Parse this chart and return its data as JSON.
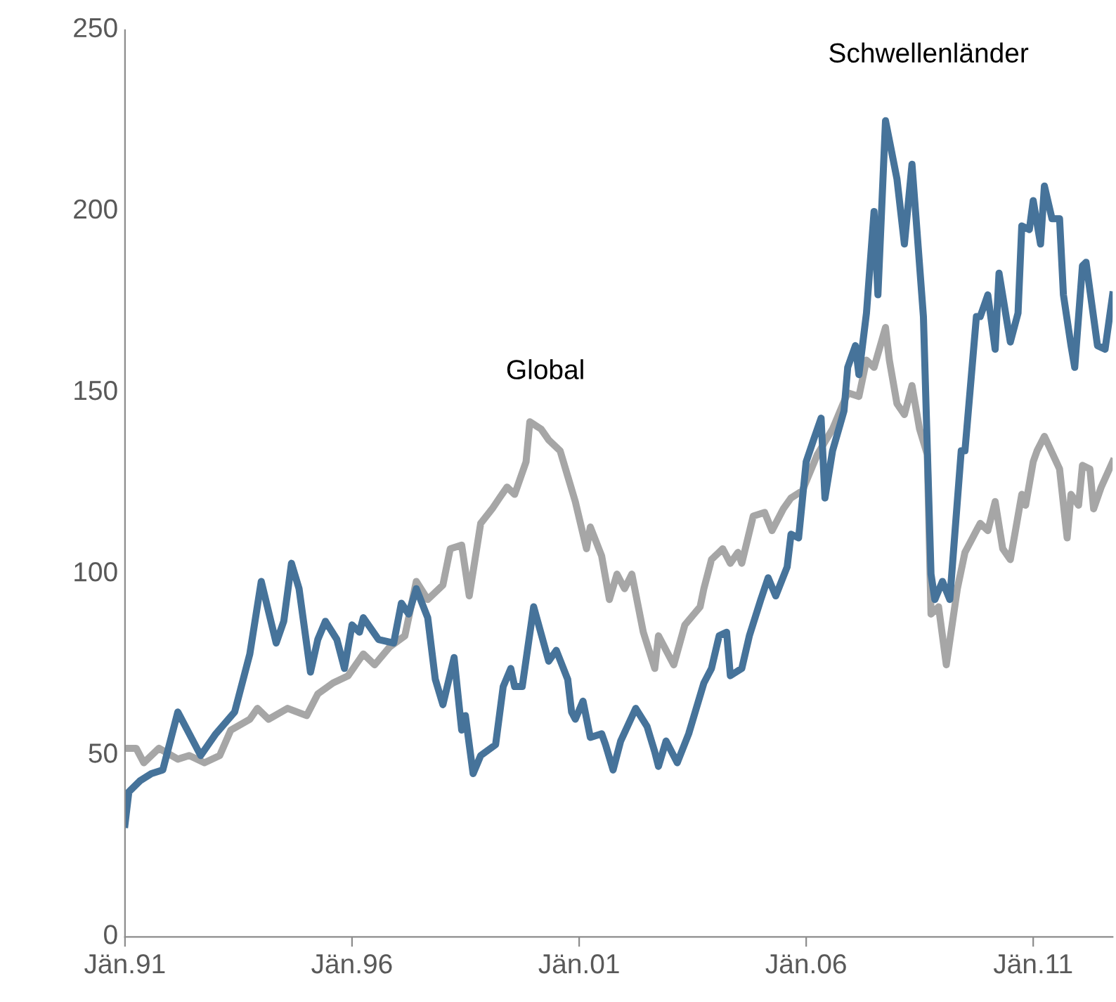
{
  "chart_data": {
    "type": "line",
    "xlim": [
      "1991-01",
      "2012-10"
    ],
    "xticks": [
      {
        "value": "1991-01",
        "label": "Jän.91"
      },
      {
        "value": "1996-01",
        "label": "Jän.96"
      },
      {
        "value": "2001-01",
        "label": "Jän.01"
      },
      {
        "value": "2006-01",
        "label": "Jän.06"
      },
      {
        "value": "2011-01",
        "label": "Jän.11"
      }
    ],
    "ylim": [
      0,
      250
    ],
    "yticks": [
      0,
      50,
      100,
      150,
      200,
      250
    ],
    "grid": false,
    "marker": "none",
    "line_style": "solid",
    "annotations": [
      {
        "text": "Global",
        "x": "1999-12",
        "y": 142
      },
      {
        "text": "Schwellenländer",
        "x": "2007-10",
        "y": 225
      }
    ],
    "series": [
      {
        "color": "#a6a6a6",
        "x": [
          "1991-01",
          "1991-04",
          "1991-06",
          "1991-10",
          "1992-03",
          "1992-06",
          "1992-10",
          "1993-02",
          "1993-05",
          "1993-10",
          "1993-12",
          "1994-03",
          "1994-08",
          "1995-01",
          "1995-04",
          "1995-08",
          "1995-12",
          "1996-04",
          "1996-07",
          "1996-11",
          "1997-03",
          "1997-06",
          "1997-09",
          "1998-01",
          "1998-03",
          "1998-06",
          "1998-08",
          "1998-11",
          "1999-02",
          "1999-04",
          "1999-06",
          "1999-08",
          "1999-11",
          "1999-12",
          "2000-03",
          "2000-05",
          "2000-08",
          "2000-10",
          "2000-12",
          "2001-03",
          "2001-04",
          "2001-07",
          "2001-09",
          "2001-11",
          "2002-01",
          "2002-03",
          "2002-06",
          "2002-09",
          "2002-10",
          "2003-02",
          "2003-05",
          "2003-09",
          "2003-10",
          "2003-12",
          "2004-03",
          "2004-05",
          "2004-07",
          "2004-08",
          "2004-11",
          "2005-02",
          "2005-04",
          "2005-07",
          "2005-09",
          "2005-12",
          "2006-04",
          "2006-08",
          "2006-12",
          "2007-03",
          "2007-05",
          "2007-07",
          "2007-10",
          "2007-11",
          "2008-01",
          "2008-03",
          "2008-05",
          "2008-07",
          "2008-09",
          "2008-10",
          "2008-12",
          "2009-02",
          "2009-05",
          "2009-07",
          "2009-10",
          "2009-11",
          "2010-01",
          "2010-03",
          "2010-05",
          "2010-07",
          "2010-08",
          "2010-10",
          "2010-11",
          "2011-01",
          "2011-02",
          "2011-04",
          "2011-08",
          "2011-10",
          "2011-11",
          "2012-01",
          "2012-02",
          "2012-04",
          "2012-05",
          "2012-07",
          "2012-10"
        ],
        "values": [
          52,
          52,
          48,
          52,
          49,
          50,
          48,
          50,
          57,
          60,
          63,
          60,
          63,
          61,
          67,
          70,
          72,
          78,
          75,
          80,
          83,
          98,
          93,
          97,
          107,
          108,
          94,
          114,
          118,
          121,
          124,
          122,
          131,
          142,
          140,
          137,
          134,
          127,
          120,
          107,
          113,
          105,
          93,
          100,
          96,
          100,
          84,
          74,
          83,
          75,
          86,
          91,
          96,
          104,
          107,
          103,
          106,
          103,
          116,
          117,
          112,
          118,
          121,
          123,
          133,
          140,
          150,
          149,
          159,
          157,
          168,
          159,
          147,
          144,
          152,
          140,
          133,
          89,
          91,
          75,
          96,
          106,
          112,
          114,
          112,
          120,
          107,
          104,
          110,
          122,
          119,
          131,
          134,
          138,
          129,
          110,
          122,
          119,
          130,
          129,
          118,
          124,
          131
        ]
      },
      {
        "color": "#46739a",
        "x": [
          "1991-01",
          "1991-02",
          "1991-05",
          "1991-08",
          "1991-11",
          "1992-03",
          "1992-09",
          "1993-01",
          "1993-06",
          "1993-10",
          "1994-01",
          "1994-05",
          "1994-07",
          "1994-09",
          "1994-11",
          "1995-02",
          "1995-04",
          "1995-06",
          "1995-09",
          "1995-11",
          "1996-01",
          "1996-03",
          "1996-04",
          "1996-08",
          "1996-12",
          "1997-02",
          "1997-04",
          "1997-06",
          "1997-09",
          "1997-11",
          "1998-01",
          "1998-04",
          "1998-06",
          "1998-07",
          "1998-09",
          "1998-11",
          "1999-03",
          "1999-05",
          "1999-07",
          "1999-08",
          "1999-10",
          "2000-01",
          "2000-05",
          "2000-07",
          "2000-10",
          "2000-11",
          "2000-12",
          "2001-02",
          "2001-04",
          "2001-07",
          "2001-08",
          "2001-10",
          "2001-12",
          "2002-04",
          "2002-07",
          "2002-09",
          "2002-10",
          "2002-12",
          "2003-03",
          "2003-06",
          "2003-10",
          "2003-12",
          "2004-02",
          "2004-04",
          "2004-05",
          "2004-08",
          "2004-10",
          "2005-01",
          "2005-03",
          "2005-05",
          "2005-08",
          "2005-09",
          "2005-11",
          "2006-01",
          "2006-03",
          "2006-05",
          "2006-06",
          "2006-08",
          "2006-11",
          "2006-12",
          "2007-02",
          "2007-03",
          "2007-05",
          "2007-07",
          "2007-08",
          "2007-10",
          "2008-01",
          "2008-03",
          "2008-05",
          "2008-08",
          "2008-10",
          "2008-11",
          "2009-01",
          "2009-03",
          "2009-06",
          "2009-07",
          "2009-10",
          "2009-11",
          "2010-01",
          "2010-03",
          "2010-04",
          "2010-07",
          "2010-09",
          "2010-10",
          "2010-12",
          "2011-01",
          "2011-03",
          "2011-04",
          "2011-06",
          "2011-08",
          "2011-09",
          "2011-11",
          "2011-12",
          "2012-02",
          "2012-03",
          "2012-06",
          "2012-08",
          "2012-10"
        ],
        "values": [
          31,
          40,
          43,
          45,
          46,
          62,
          50,
          56,
          62,
          78,
          98,
          81,
          87,
          103,
          96,
          73,
          82,
          87,
          82,
          74,
          86,
          84,
          88,
          82,
          81,
          92,
          89,
          96,
          88,
          71,
          64,
          77,
          57,
          61,
          45,
          50,
          53,
          69,
          74,
          69,
          69,
          91,
          76,
          79,
          71,
          62,
          60,
          65,
          55,
          56,
          53,
          46,
          54,
          63,
          58,
          51,
          47,
          54,
          48,
          56,
          70,
          74,
          83,
          84,
          72,
          74,
          83,
          93,
          99,
          94,
          102,
          111,
          110,
          131,
          137,
          143,
          121,
          134,
          145,
          157,
          163,
          155,
          172,
          200,
          177,
          225,
          209,
          191,
          213,
          171,
          100,
          93,
          98,
          93,
          134,
          134,
          171,
          171,
          177,
          162,
          183,
          164,
          172,
          196,
          195,
          203,
          191,
          207,
          198,
          198,
          177,
          163,
          157,
          185,
          186,
          163,
          162,
          177
        ]
      }
    ]
  }
}
